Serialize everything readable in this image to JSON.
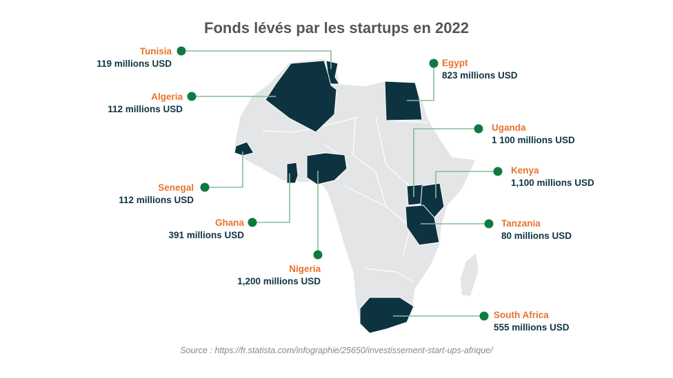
{
  "title": "Fonds lévés par les startups en 2022",
  "source": "Source : https://fr.statista.com/infographie/25650/investissement-start-ups-afrique/",
  "colors": {
    "highlight": "#0e3340",
    "land": "#e4e5e7",
    "border": "#ffffff",
    "connector": "#7fbf98",
    "dot": "#0f7a3f",
    "country_name": "#e8722c",
    "amount": "#0e3340"
  },
  "countries": [
    {
      "id": "tunisia",
      "name": "Tunisia",
      "amount": "119 millions USD"
    },
    {
      "id": "algeria",
      "name": "Algeria",
      "amount": "112 millions USD"
    },
    {
      "id": "senegal",
      "name": "Senegal",
      "amount": "112 millions USD"
    },
    {
      "id": "ghana",
      "name": "Ghana",
      "amount": "391 millions USD"
    },
    {
      "id": "nigeria",
      "name": "Nigeria",
      "amount": "1,200 millions USD"
    },
    {
      "id": "egypt",
      "name": "Egypt",
      "amount": "823 millions USD"
    },
    {
      "id": "uganda",
      "name": "Uganda",
      "amount": "1 100 millions USD"
    },
    {
      "id": "kenya",
      "name": "Kenya",
      "amount": "1,100 millions USD"
    },
    {
      "id": "tanzania",
      "name": "Tanzania",
      "amount": "80 millions USD"
    },
    {
      "id": "south-africa",
      "name": "South Africa",
      "amount": "555 millions USD"
    }
  ]
}
